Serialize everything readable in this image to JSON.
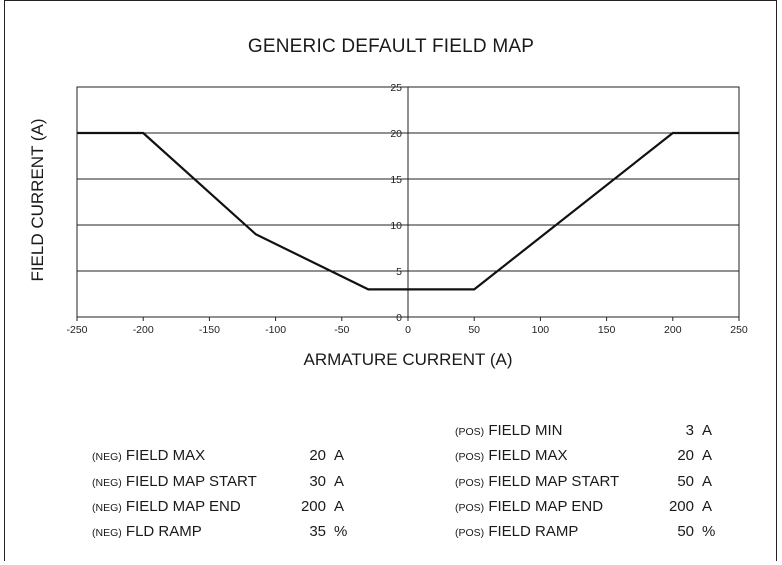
{
  "chart_data": {
    "type": "line",
    "title": "GENERIC DEFAULT FIELD MAP",
    "xlabel": "ARMATURE CURRENT (A)",
    "ylabel": "FIELD CURRENT (A)",
    "xlim": [
      -250,
      250
    ],
    "ylim": [
      0,
      25
    ],
    "x_ticks": [
      "-250",
      "-200",
      "-150",
      "-100",
      "-50",
      "0",
      "50",
      "100",
      "150",
      "200",
      "250"
    ],
    "y_ticks": [
      "0",
      "5",
      "10",
      "15",
      "20",
      "25"
    ],
    "grid": "horizontal",
    "series": [
      {
        "points": [
          [
            -250,
            20
          ],
          [
            -200,
            20
          ],
          [
            -115,
            9
          ],
          [
            -30,
            3
          ],
          [
            50,
            3
          ],
          [
            200,
            20
          ],
          [
            250,
            20
          ]
        ]
      }
    ]
  },
  "parameters": {
    "negative": [
      {
        "prefix": "(NEG)",
        "name": "FIELD MAX",
        "value": "20",
        "unit": "A"
      },
      {
        "prefix": "(NEG)",
        "name": "FIELD MAP START",
        "value": "30",
        "unit": "A"
      },
      {
        "prefix": "(NEG)",
        "name": "FIELD MAP END",
        "value": "200",
        "unit": "A"
      },
      {
        "prefix": "(NEG)",
        "name": "FLD RAMP",
        "value": "35",
        "unit": "%"
      }
    ],
    "positive": [
      {
        "prefix": "(POS)",
        "name": "FIELD MIN",
        "value": "3",
        "unit": "A"
      },
      {
        "prefix": "(POS)",
        "name": "FIELD MAX",
        "value": "20",
        "unit": "A"
      },
      {
        "prefix": "(POS)",
        "name": "FIELD MAP START",
        "value": "50",
        "unit": "A"
      },
      {
        "prefix": "(POS)",
        "name": "FIELD MAP END",
        "value": "200",
        "unit": "A"
      },
      {
        "prefix": "(POS)",
        "name": "FIELD RAMP",
        "value": "50",
        "unit": "%"
      }
    ]
  }
}
